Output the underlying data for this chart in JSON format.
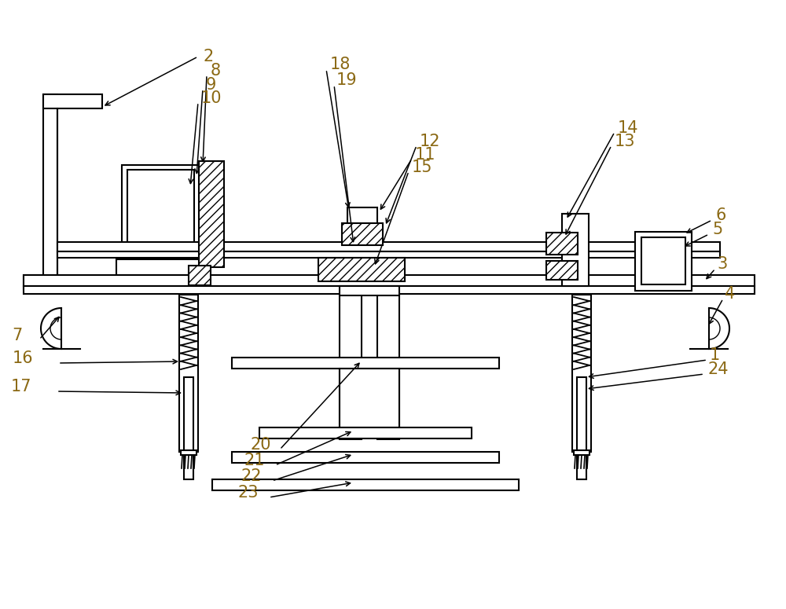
{
  "bg_color": "#ffffff",
  "line_color": "#000000",
  "label_color": "#8B6914",
  "figsize": [
    10.0,
    7.75
  ],
  "dpi": 100,
  "label_fontsize": 15
}
